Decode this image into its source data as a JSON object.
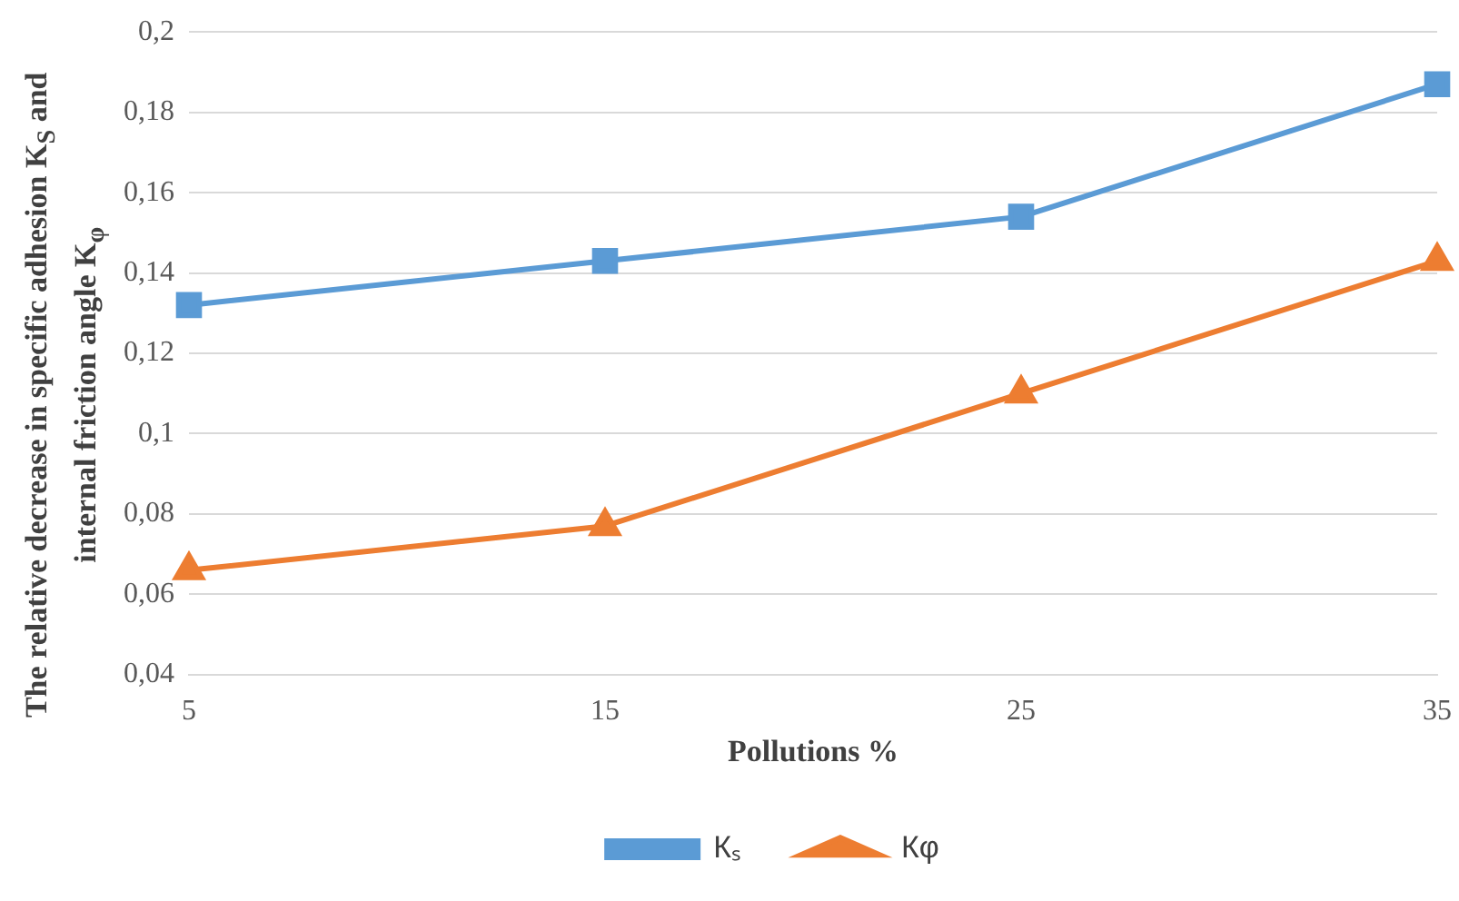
{
  "chart_data": {
    "type": "line",
    "xlabel": "Pollutions %",
    "ylabel": "The relative decrease in specific adhesion K$_{S}$ and internal friction angle K$_{φ}$",
    "categories": [
      "5",
      "15",
      "25",
      "35"
    ],
    "series": [
      {
        "name": "Кₛ",
        "color": "#5b9bd5",
        "marker": "square",
        "values": [
          0.132,
          0.143,
          0.154,
          0.187
        ]
      },
      {
        "name": "Кφ",
        "color": "#ed7d31",
        "marker": "triangle",
        "values": [
          0.066,
          0.077,
          0.11,
          0.143
        ]
      }
    ],
    "ylim": [
      0.04,
      0.2
    ],
    "yticks": [
      {
        "value": 0.04,
        "label": "0,04"
      },
      {
        "value": 0.06,
        "label": "0,06"
      },
      {
        "value": 0.08,
        "label": "0,08"
      },
      {
        "value": 0.1,
        "label": "0,1"
      },
      {
        "value": 0.12,
        "label": "0,12"
      },
      {
        "value": 0.14,
        "label": "0,14"
      },
      {
        "value": 0.16,
        "label": "0,16"
      },
      {
        "value": 0.18,
        "label": "0,18"
      },
      {
        "value": 0.2,
        "label": "0,2"
      }
    ],
    "grid": "y",
    "legend": "bottom"
  }
}
